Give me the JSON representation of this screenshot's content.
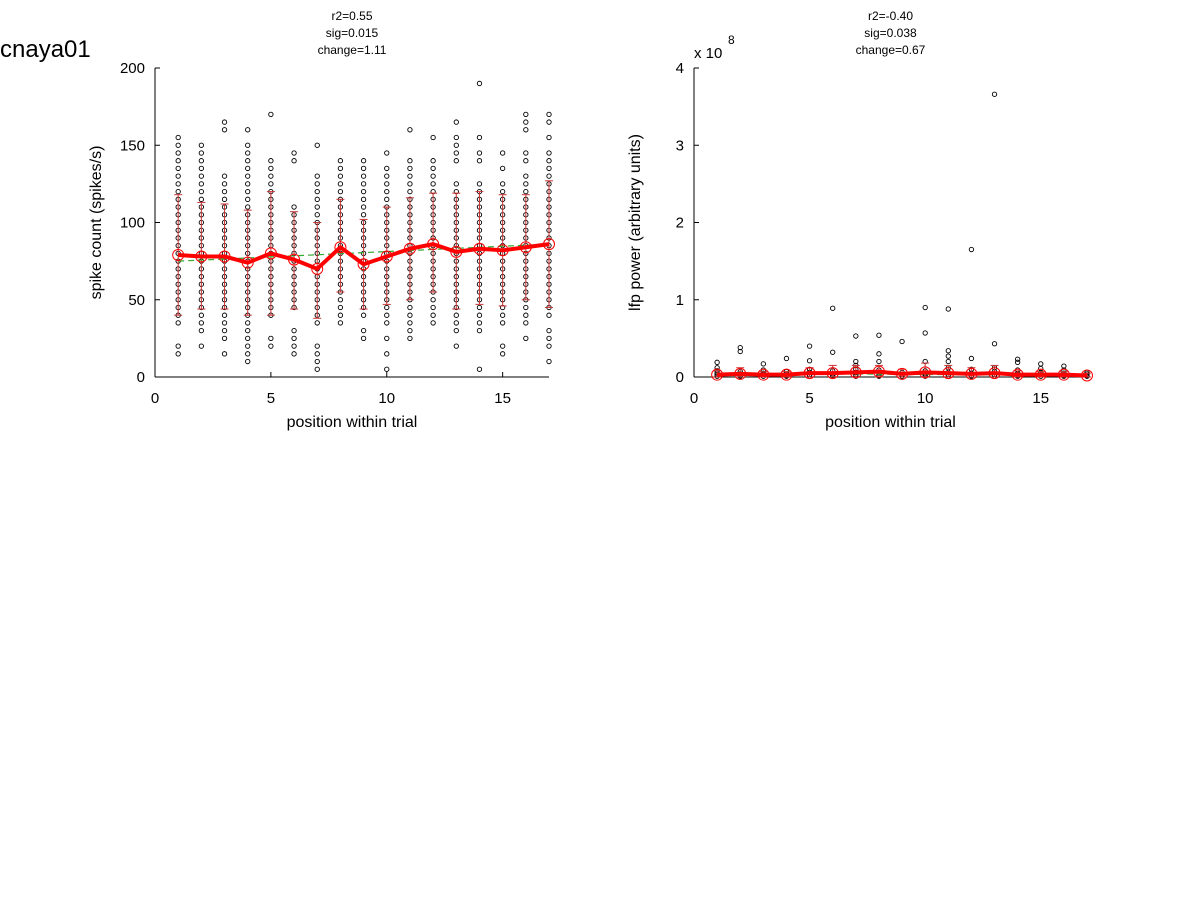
{
  "figure": {
    "label": "cnaya01"
  },
  "chart_data": [
    {
      "type": "scatter",
      "title_lines": [
        "r2=0.55",
        "sig=0.015",
        "change=1.11"
      ],
      "xlabel": "position within trial",
      "ylabel": "spike count (spikes/s)",
      "xlim": [
        0,
        17
      ],
      "ylim": [
        0,
        200
      ],
      "xticks": [
        0,
        5,
        10,
        15
      ],
      "yticks": [
        0,
        50,
        100,
        150,
        200
      ],
      "exponent_label": "",
      "grid": false,
      "colors": {
        "points": "#000000",
        "mean_line": "#ff0000",
        "errorbars": "#cc3333",
        "fit_line": "#33aa33"
      },
      "scatter": [
        {
          "x": 1,
          "ys": [
            15,
            20,
            35,
            40,
            45,
            50,
            55,
            60,
            65,
            70,
            75,
            80,
            85,
            90,
            95,
            100,
            105,
            110,
            115,
            120,
            125,
            130,
            135,
            140,
            145,
            150,
            155
          ]
        },
        {
          "x": 2,
          "ys": [
            20,
            30,
            35,
            40,
            45,
            50,
            55,
            60,
            65,
            70,
            75,
            80,
            85,
            90,
            95,
            100,
            105,
            110,
            115,
            120,
            125,
            130,
            135,
            140,
            145,
            150
          ]
        },
        {
          "x": 3,
          "ys": [
            15,
            25,
            30,
            35,
            40,
            45,
            50,
            55,
            60,
            65,
            70,
            75,
            80,
            85,
            90,
            95,
            100,
            105,
            110,
            115,
            120,
            125,
            130,
            160,
            165
          ]
        },
        {
          "x": 4,
          "ys": [
            10,
            15,
            20,
            25,
            30,
            35,
            40,
            45,
            50,
            55,
            60,
            65,
            70,
            75,
            80,
            85,
            90,
            95,
            100,
            105,
            110,
            115,
            120,
            125,
            130,
            135,
            140,
            145,
            150,
            160
          ]
        },
        {
          "x": 5,
          "ys": [
            20,
            25,
            40,
            45,
            50,
            55,
            60,
            65,
            70,
            75,
            80,
            85,
            90,
            95,
            100,
            105,
            110,
            115,
            120,
            125,
            130,
            135,
            140,
            170
          ]
        },
        {
          "x": 6,
          "ys": [
            15,
            20,
            25,
            30,
            45,
            50,
            55,
            60,
            65,
            70,
            75,
            80,
            85,
            90,
            95,
            100,
            105,
            110,
            140,
            145
          ]
        },
        {
          "x": 7,
          "ys": [
            5,
            10,
            15,
            20,
            35,
            40,
            45,
            50,
            55,
            60,
            65,
            70,
            75,
            80,
            85,
            90,
            95,
            100,
            105,
            110,
            115,
            120,
            125,
            130,
            150
          ]
        },
        {
          "x": 8,
          "ys": [
            35,
            40,
            45,
            50,
            55,
            60,
            65,
            70,
            75,
            80,
            85,
            90,
            95,
            100,
            105,
            110,
            115,
            120,
            125,
            130,
            135,
            140
          ]
        },
        {
          "x": 9,
          "ys": [
            25,
            30,
            40,
            45,
            50,
            55,
            60,
            65,
            70,
            75,
            80,
            85,
            90,
            95,
            100,
            105,
            110,
            115,
            120,
            125,
            130,
            135,
            140
          ]
        },
        {
          "x": 10,
          "ys": [
            5,
            15,
            25,
            35,
            40,
            45,
            50,
            55,
            60,
            65,
            70,
            75,
            80,
            85,
            90,
            95,
            100,
            105,
            110,
            115,
            120,
            125,
            130,
            135,
            145
          ]
        },
        {
          "x": 11,
          "ys": [
            25,
            30,
            35,
            40,
            45,
            50,
            55,
            60,
            65,
            70,
            75,
            80,
            85,
            90,
            95,
            100,
            105,
            110,
            115,
            120,
            125,
            130,
            135,
            140,
            160
          ]
        },
        {
          "x": 12,
          "ys": [
            35,
            40,
            45,
            50,
            55,
            60,
            65,
            70,
            75,
            80,
            85,
            90,
            95,
            100,
            105,
            110,
            115,
            120,
            125,
            130,
            135,
            140,
            155
          ]
        },
        {
          "x": 13,
          "ys": [
            20,
            30,
            35,
            40,
            45,
            50,
            55,
            60,
            65,
            70,
            75,
            80,
            85,
            90,
            95,
            100,
            105,
            110,
            115,
            120,
            125,
            140,
            145,
            150,
            155,
            165
          ]
        },
        {
          "x": 14,
          "ys": [
            5,
            30,
            35,
            40,
            45,
            50,
            55,
            60,
            65,
            70,
            75,
            80,
            85,
            90,
            95,
            100,
            105,
            110,
            115,
            120,
            125,
            140,
            145,
            155,
            190
          ]
        },
        {
          "x": 15,
          "ys": [
            15,
            20,
            35,
            40,
            45,
            50,
            55,
            60,
            65,
            70,
            75,
            80,
            85,
            90,
            95,
            100,
            105,
            110,
            115,
            120,
            125,
            135,
            145
          ]
        },
        {
          "x": 16,
          "ys": [
            25,
            35,
            40,
            45,
            50,
            55,
            60,
            65,
            70,
            75,
            80,
            85,
            90,
            95,
            100,
            105,
            110,
            115,
            120,
            125,
            130,
            140,
            145,
            160,
            165,
            170
          ]
        },
        {
          "x": 17,
          "ys": [
            10,
            20,
            25,
            30,
            40,
            45,
            50,
            55,
            60,
            65,
            70,
            75,
            80,
            85,
            90,
            95,
            100,
            105,
            110,
            115,
            120,
            125,
            130,
            135,
            140,
            145,
            155,
            165,
            170
          ]
        }
      ],
      "series": [
        {
          "role": "mean",
          "x": [
            1,
            2,
            3,
            4,
            5,
            6,
            7,
            8,
            9,
            10,
            11,
            12,
            13,
            14,
            15,
            16,
            17
          ],
          "y": [
            79,
            78,
            78,
            74,
            80,
            76,
            70,
            84,
            73,
            78,
            83,
            86,
            81,
            83,
            82,
            84,
            86
          ]
        },
        {
          "role": "linear_fit",
          "x": [
            1,
            17
          ],
          "y": [
            75,
            86
          ]
        }
      ],
      "errorbars": {
        "x": [
          1,
          2,
          3,
          4,
          5,
          6,
          7,
          8,
          9,
          10,
          11,
          12,
          13,
          14,
          15,
          16,
          17
        ],
        "low": [
          40,
          44,
          44,
          40,
          40,
          44,
          38,
          55,
          44,
          47,
          50,
          55,
          44,
          47,
          46,
          50,
          45
        ],
        "high": [
          118,
          113,
          112,
          108,
          120,
          107,
          100,
          115,
          102,
          110,
          116,
          119,
          119,
          120,
          118,
          118,
          127
        ]
      }
    },
    {
      "type": "scatter",
      "title_lines": [
        "r2=-0.40",
        "sig=0.038",
        "change=0.67"
      ],
      "xlabel": "position within trial",
      "ylabel": "lfp power (arbitrary units)",
      "xlim": [
        0,
        17
      ],
      "ylim": [
        0,
        4
      ],
      "xticks": [
        0,
        5,
        10,
        15
      ],
      "yticks": [
        0,
        1,
        2,
        3,
        4
      ],
      "exponent_label": "x 10",
      "exponent_power": "8",
      "grid": false,
      "colors": {
        "points": "#000000",
        "mean_line": "#ff0000",
        "errorbars": "#cc3333",
        "fit_line": "#33aa33"
      },
      "scatter": [
        {
          "x": 1,
          "ys": [
            0.01,
            0.03,
            0.05,
            0.08,
            0.12,
            0.19
          ]
        },
        {
          "x": 2,
          "ys": [
            0.01,
            0.02,
            0.04,
            0.07,
            0.33,
            0.38
          ]
        },
        {
          "x": 3,
          "ys": [
            0.01,
            0.03,
            0.05,
            0.09,
            0.17
          ]
        },
        {
          "x": 4,
          "ys": [
            0.01,
            0.02,
            0.04,
            0.07,
            0.24
          ]
        },
        {
          "x": 5,
          "ys": [
            0.01,
            0.03,
            0.06,
            0.1,
            0.21,
            0.4
          ]
        },
        {
          "x": 6,
          "ys": [
            0.01,
            0.02,
            0.04,
            0.08,
            0.32,
            0.89
          ]
        },
        {
          "x": 7,
          "ys": [
            0.01,
            0.03,
            0.06,
            0.1,
            0.15,
            0.2,
            0.53
          ]
        },
        {
          "x": 8,
          "ys": [
            0.01,
            0.02,
            0.05,
            0.09,
            0.2,
            0.3,
            0.54
          ]
        },
        {
          "x": 9,
          "ys": [
            0.01,
            0.03,
            0.06,
            0.46
          ]
        },
        {
          "x": 10,
          "ys": [
            0.01,
            0.02,
            0.04,
            0.08,
            0.2,
            0.57,
            0.9
          ]
        },
        {
          "x": 11,
          "ys": [
            0.01,
            0.03,
            0.06,
            0.12,
            0.2,
            0.27,
            0.34,
            0.88
          ]
        },
        {
          "x": 12,
          "ys": [
            0.01,
            0.02,
            0.05,
            0.1,
            0.24,
            1.65
          ]
        },
        {
          "x": 13,
          "ys": [
            0.01,
            0.03,
            0.07,
            0.12,
            0.43,
            3.66
          ]
        },
        {
          "x": 14,
          "ys": [
            0.01,
            0.02,
            0.05,
            0.09,
            0.19,
            0.23
          ]
        },
        {
          "x": 15,
          "ys": [
            0.01,
            0.03,
            0.06,
            0.11,
            0.17
          ]
        },
        {
          "x": 16,
          "ys": [
            0.01,
            0.02,
            0.05,
            0.09,
            0.14
          ]
        },
        {
          "x": 17,
          "ys": [
            0.01,
            0.02,
            0.04,
            0.06
          ]
        }
      ],
      "series": [
        {
          "role": "mean",
          "x": [
            1,
            2,
            3,
            4,
            5,
            6,
            7,
            8,
            9,
            10,
            11,
            12,
            13,
            14,
            15,
            16,
            17
          ],
          "y": [
            0.03,
            0.04,
            0.03,
            0.03,
            0.05,
            0.05,
            0.06,
            0.07,
            0.04,
            0.06,
            0.05,
            0.04,
            0.05,
            0.03,
            0.03,
            0.03,
            0.02
          ]
        },
        {
          "role": "linear_fit",
          "x": [
            1,
            17
          ],
          "y": [
            0.05,
            0.02
          ]
        }
      ],
      "errorbars": {
        "x": [
          1,
          2,
          3,
          4,
          5,
          6,
          7,
          8,
          9,
          10,
          11,
          12,
          13,
          14,
          15,
          16,
          17
        ],
        "low": [
          0.0,
          0.0,
          0.0,
          0.0,
          0.0,
          0.0,
          0.0,
          0.0,
          0.0,
          0.0,
          0.0,
          0.0,
          0.0,
          0.0,
          0.0,
          0.0,
          0.0
        ],
        "high": [
          0.08,
          0.12,
          0.07,
          0.07,
          0.12,
          0.15,
          0.15,
          0.15,
          0.1,
          0.18,
          0.15,
          0.12,
          0.15,
          0.08,
          0.07,
          0.07,
          0.05
        ]
      }
    }
  ]
}
